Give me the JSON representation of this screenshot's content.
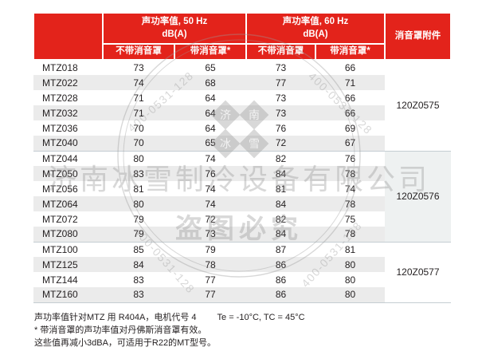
{
  "table": {
    "header": {
      "group_50hz_line1": "声功率值, 50 Hz",
      "group_50hz_line2": "dB(A)",
      "group_60hz_line1": "声功率值, 60 Hz",
      "group_60hz_line2": "dB(A)",
      "attachment": "消音罩附件",
      "sub": [
        "不带消音罩",
        "带消音罩*",
        "不带消音罩",
        "带消音罩*"
      ]
    },
    "groups": [
      {
        "attachment": "120Z0575",
        "rows": [
          {
            "model": "MTZ018",
            "values": [
              "73",
              "65",
              "73",
              "66"
            ]
          },
          {
            "model": "MTZ022",
            "values": [
              "74",
              "68",
              "77",
              "71"
            ]
          },
          {
            "model": "MTZ028",
            "values": [
              "71",
              "64",
              "73",
              "66"
            ]
          },
          {
            "model": "MTZ032",
            "values": [
              "71",
              "64",
              "73",
              "66"
            ]
          },
          {
            "model": "MTZ036",
            "values": [
              "70",
              "64",
              "76",
              "69"
            ]
          },
          {
            "model": "MTZ040",
            "values": [
              "70",
              "65",
              "72",
              "67"
            ]
          }
        ]
      },
      {
        "attachment": "120Z0576",
        "rows": [
          {
            "model": "MTZ044",
            "values": [
              "80",
              "74",
              "82",
              "76"
            ]
          },
          {
            "model": "MTZ050",
            "values": [
              "83",
              "76",
              "84",
              "78"
            ]
          },
          {
            "model": "MTZ056",
            "values": [
              "81",
              "74",
              "81",
              "74"
            ]
          },
          {
            "model": "MTZ064",
            "values": [
              "80",
              "74",
              "84",
              "78"
            ]
          },
          {
            "model": "MTZ072",
            "values": [
              "79",
              "72",
              "82",
              "75"
            ]
          },
          {
            "model": "MTZ080",
            "values": [
              "79",
              "73",
              "84",
              "78"
            ]
          }
        ]
      },
      {
        "attachment": "120Z0577",
        "rows": [
          {
            "model": "MTZ100",
            "values": [
              "85",
              "79",
              "87",
              "81"
            ]
          },
          {
            "model": "MTZ125",
            "values": [
              "84",
              "78",
              "86",
              "80"
            ]
          },
          {
            "model": "MTZ144",
            "values": [
              "83",
              "77",
              "86",
              "80"
            ]
          },
          {
            "model": "MTZ160",
            "values": [
              "83",
              "77",
              "86",
              "80"
            ]
          }
        ]
      }
    ]
  },
  "footnotes": {
    "line1_left": "声功率值针对MTZ 用 R404A，电机代号 4",
    "line1_right": "Te = -10°C, TC = 45°C",
    "line2": "* 带消音罩的声功率值对丹佛斯消音罩有效。",
    "line3": "这些值再减小3dBA，可适用于R22的MT型号。"
  },
  "watermark": {
    "company": "济南冰雪制冷设备有限公司",
    "warning": "盗图必究",
    "phone": "400-0531-128",
    "logo_chars": [
      "济",
      "南",
      "冰",
      "雪"
    ]
  },
  "colors": {
    "header_red": "#e3231b",
    "stripe": "#ebebeb",
    "attach_alt": "#eef1f1",
    "separator": "#c4cdd2",
    "text": "#231f20",
    "header_text": "#ffffff",
    "watermark": "#9a9a9a"
  }
}
